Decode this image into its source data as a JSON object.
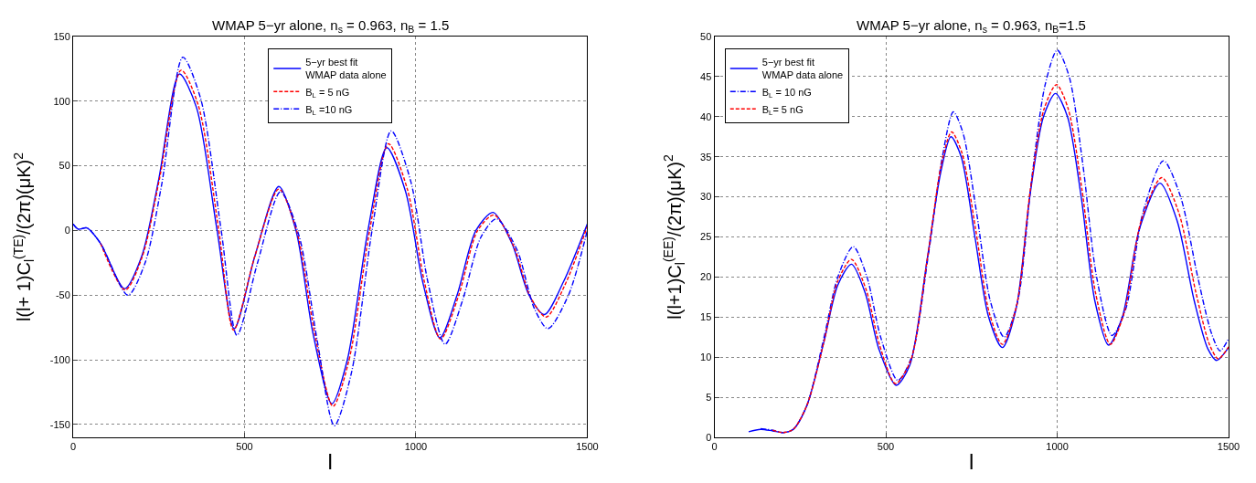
{
  "chart_data": [
    {
      "type": "line",
      "title": "WMAP 5−yr alone, n$_{s}$ = 0.963, n$_{B}$ = 1.5",
      "xlabel": "l",
      "ylabel": "l(l+ 1)C$_{l}$$^{(TE)}$/(2π)(μK)$^{2}$",
      "xlim": [
        0,
        1500
      ],
      "xticks": [
        0,
        500,
        1000,
        1500
      ],
      "ylim": [
        -160,
        150
      ],
      "yticks": [
        -150,
        -100,
        -50,
        0,
        50,
        100,
        150
      ],
      "grid": true,
      "legend": "top",
      "marker": "none",
      "series": [
        {
          "name": "5−yr best fit\nWMAP data alone",
          "color": "#0000ff",
          "line_style": "solid",
          "x": [
            0,
            15,
            40,
            80,
            150,
            200,
            250,
            310,
            360,
            420,
            470,
            530,
            600,
            650,
            700,
            755,
            800,
            860,
            915,
            970,
            1020,
            1070,
            1120,
            1175,
            1225,
            1280,
            1330,
            1375,
            1430,
            1500
          ],
          "values": [
            5,
            1,
            2,
            -10,
            -45,
            -20,
            40,
            121,
            95,
            0,
            -76,
            -20,
            34,
            0,
            -80,
            -134,
            -100,
            0,
            64,
            30,
            -40,
            -83,
            -50,
            0,
            14,
            -10,
            -50,
            -65,
            -40,
            5
          ]
        },
        {
          "name": "B$_{L}$ = 5 nG",
          "color": "#ff0000",
          "line_style": "dashed",
          "x": [
            80,
            152,
            202,
            252,
            315,
            365,
            425,
            468,
            530,
            600,
            652,
            705,
            758,
            805,
            865,
            920,
            975,
            1025,
            1072,
            1125,
            1180,
            1228,
            1285,
            1335,
            1380,
            1435,
            1500
          ],
          "values": [
            -10,
            -46,
            -20,
            40,
            124,
            97,
            0,
            -77,
            -20,
            32,
            0,
            -80,
            -136,
            -100,
            0,
            67,
            32,
            -40,
            -84,
            -50,
            0,
            12,
            -12,
            -52,
            -67,
            -42,
            3
          ]
        },
        {
          "name": "B$_{L}$ =10 nG",
          "color": "#0000ff",
          "line_style": "dashdot",
          "x": [
            0,
            15,
            40,
            80,
            160,
            210,
            258,
            320,
            372,
            432,
            478,
            538,
            605,
            660,
            712,
            762,
            812,
            872,
            928,
            985,
            1035,
            1085,
            1135,
            1190,
            1235,
            1295,
            1345,
            1385,
            1445,
            1500
          ],
          "values": [
            5,
            1,
            2,
            -10,
            -50,
            -25,
            35,
            134,
            102,
            0,
            -81,
            -25,
            30,
            -5,
            -85,
            -151,
            -110,
            0,
            77,
            38,
            -40,
            -88,
            -55,
            -5,
            9,
            -15,
            -60,
            -76,
            -50,
            0
          ]
        }
      ]
    },
    {
      "type": "line",
      "title": "WMAP 5−yr alone, n$_{s}$ = 0.963, n$_{B}$=1.5",
      "xlabel": "l",
      "ylabel": "l(l+1)C$_{l}$$^{(EE)}$/(2π)(μK)$^{2}$",
      "xlim": [
        0,
        1500
      ],
      "xticks": [
        0,
        500,
        1000,
        1500
      ],
      "ylim": [
        0,
        50
      ],
      "yticks": [
        0,
        5,
        10,
        15,
        20,
        25,
        30,
        35,
        40,
        45,
        50
      ],
      "grid": true,
      "legend": "top left",
      "marker": "none",
      "series": [
        {
          "name": "5−yr best fit\nWMAP data alone",
          "color": "#0000ff",
          "line_style": "solid",
          "x": [
            100,
            135,
            170,
            200,
            230,
            270,
            320,
            360,
            400,
            440,
            480,
            530,
            570,
            620,
            660,
            690,
            720,
            760,
            800,
            840,
            880,
            920,
            960,
            995,
            1030,
            1070,
            1110,
            1150,
            1190,
            1240,
            1300,
            1350,
            1400,
            1440,
            1465,
            1500
          ],
          "values": [
            0.7,
            1.0,
            0.8,
            0.6,
            1.0,
            4,
            12,
            19,
            21.6,
            18,
            11,
            6.5,
            9,
            22,
            33,
            37.5,
            35,
            25,
            15,
            11.2,
            16,
            30,
            40,
            42.9,
            40,
            30,
            17,
            11.5,
            15,
            26,
            31.7,
            27,
            17,
            11,
            9.6,
            11.2
          ]
        },
        {
          "name": "B$_{L}$ = 10 nG",
          "color": "#0000ff",
          "line_style": "dashdot",
          "x": [
            135,
            170,
            200,
            230,
            270,
            320,
            360,
            405,
            445,
            485,
            535,
            575,
            625,
            665,
            697,
            725,
            765,
            805,
            845,
            885,
            925,
            965,
            1000,
            1035,
            1075,
            1115,
            1160,
            1200,
            1250,
            1310,
            1360,
            1410,
            1450,
            1475,
            1500
          ],
          "values": [
            1.1,
            0.9,
            0.6,
            1.0,
            4,
            12.5,
            20,
            23.8,
            20,
            12.5,
            7.1,
            10,
            23,
            35,
            40.6,
            38,
            28,
            17,
            12.5,
            17,
            32,
            44,
            48.3,
            45,
            34,
            20,
            12.7,
            16,
            28,
            34.5,
            30,
            20,
            13,
            10.8,
            12.3
          ]
        },
        {
          "name": "B$_{L}$= 5 nG",
          "color": "#ff0000",
          "line_style": "dashed",
          "x": [
            170,
            200,
            230,
            270,
            320,
            360,
            400,
            442,
            482,
            528,
            572,
            622,
            662,
            692,
            722,
            762,
            802,
            840,
            882,
            922,
            962,
            998,
            1032,
            1072,
            1112,
            1155,
            1195,
            1245,
            1305,
            1355,
            1405,
            1445,
            1470,
            1500
          ],
          "values": [
            0.9,
            0.6,
            1.0,
            4,
            12,
            19.5,
            22.2,
            18.5,
            11.5,
            6.7,
            9.5,
            22.5,
            34,
            38.1,
            35.5,
            26,
            15.5,
            11.6,
            16.5,
            31,
            41,
            44.0,
            41,
            31,
            18,
            11.6,
            15.5,
            27,
            32.4,
            28,
            18,
            11.5,
            9.8,
            11.3
          ]
        }
      ]
    }
  ]
}
